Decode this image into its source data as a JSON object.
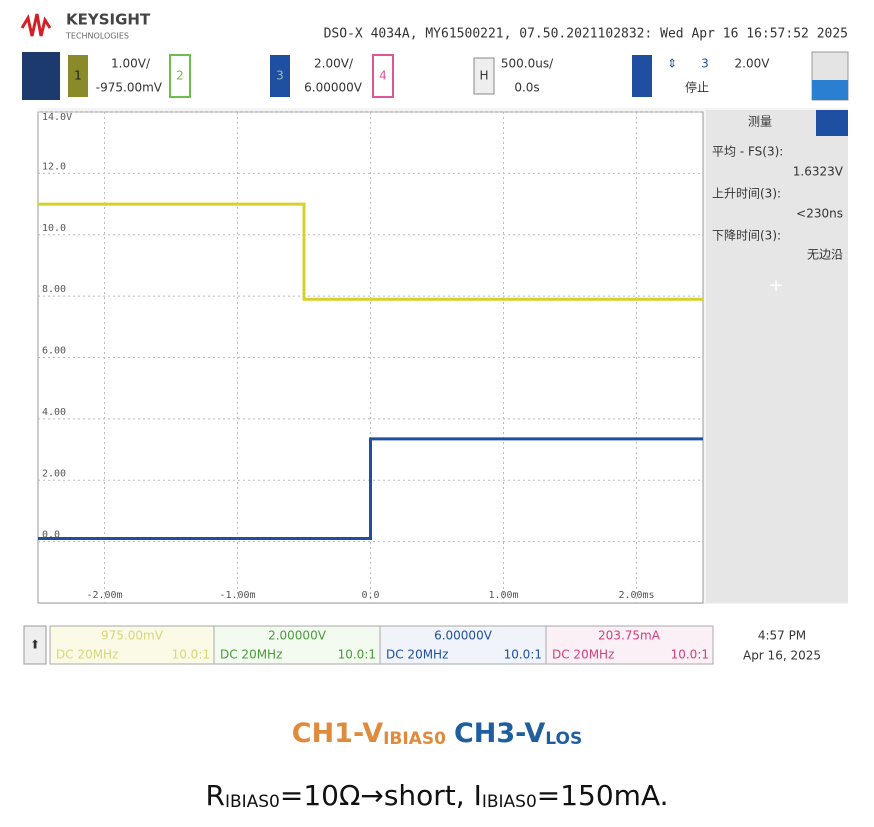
{
  "header": {
    "brand": "KEYSIGHT",
    "brand_sub": "TECHNOLOGIES",
    "info": "DSO-X 4034A, MY61500221, 07.50.2021102832: Wed Apr 16 16:57:52 2025"
  },
  "toolbar": {
    "ch1": "1",
    "ch1_scale": "1.00V/",
    "ch1_offset": "-975.00mV",
    "ch2": "2",
    "ch3": "3",
    "ch3_scale": "2.00V/",
    "ch3_offset": "6.00000V",
    "ch4": "4",
    "h": "H",
    "time_scale": "500.0us/",
    "time_delay": "0.0s",
    "trig_src": "3",
    "trig_level": "2.00V",
    "status": "停止"
  },
  "panel": {
    "title": "测量",
    "m1_label": "平均 - FS(3):",
    "m1_value": "1.6323V",
    "m2_label": "上升时间(3):",
    "m2_value": "<230ns",
    "m3_label": "下降时间(3):",
    "m3_value": "无边沿",
    "add": "+"
  },
  "bottom": {
    "ch1_value": "975.00mV",
    "ch1_coupling": "DC 20MHz",
    "ch1_probe": "10.0:1",
    "ch2_value": "2.00000V",
    "ch2_coupling": "DC 20MHz",
    "ch2_probe": "10.0:1",
    "ch3_value": "6.00000V",
    "ch3_coupling": "DC 20MHz",
    "ch3_probe": "10.0:1",
    "ch4_value": "203.75mA",
    "ch4_coupling": "DC 20MHz",
    "ch4_probe": "10.0:1",
    "time": "4:57 PM",
    "date": "Apr 16, 2025"
  },
  "caption": {
    "l1a": "CH1-V",
    "l1a_sub": "IBIAS0",
    "l1b": "CH3-V",
    "l1b_sub": "LOS",
    "l2a": "R",
    "l2a_sub": "IBIAS0",
    "l2b": "=10Ω→short, I",
    "l2b_sub": "IBIAS0",
    "l2c": "=150mA."
  },
  "chart_data": {
    "type": "line",
    "xlim": [
      -2.5,
      2.5
    ],
    "ylim": [
      -2,
      14
    ],
    "xticks": [
      {
        "value": -2,
        "label": "-2.00m"
      },
      {
        "value": -1,
        "label": "-1.00m"
      },
      {
        "value": 0,
        "label": "0.0"
      },
      {
        "value": 1,
        "label": "1.00m"
      },
      {
        "value": 2,
        "label": "2.00ms"
      }
    ],
    "yticks": [
      {
        "value": 0,
        "label": "0.0"
      },
      {
        "value": 2,
        "label": "2.00"
      },
      {
        "value": 4,
        "label": "4.00"
      },
      {
        "value": 6,
        "label": "6.00"
      },
      {
        "value": 8,
        "label": "8.00"
      },
      {
        "value": 10,
        "label": "10.0"
      },
      {
        "value": 12,
        "label": "12.0"
      },
      {
        "value": 14,
        "label": "14.0V"
      }
    ],
    "grid": true,
    "series": [
      {
        "name": "CH1",
        "color": "#d4d22a",
        "x": [
          -2.5,
          -0.5,
          -0.5,
          2.5
        ],
        "values": [
          11,
          11,
          7.9,
          7.9
        ]
      },
      {
        "name": "CH3",
        "color": "#1f4fa0",
        "x": [
          -2.5,
          0,
          0,
          2.5
        ],
        "values": [
          0.1,
          0.1,
          3.35,
          3.35
        ]
      }
    ]
  }
}
